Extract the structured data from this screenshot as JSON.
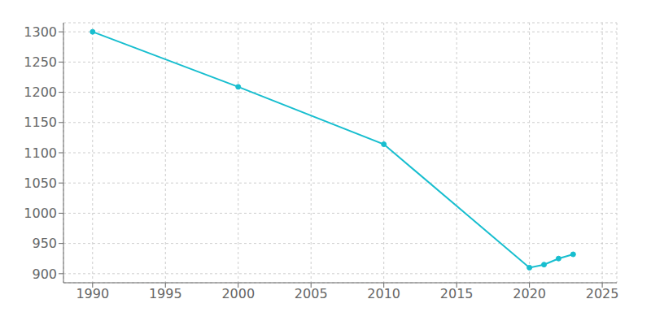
{
  "chart_data": {
    "type": "line",
    "x": [
      1990,
      2000,
      2010,
      2020,
      2021,
      2022,
      2023
    ],
    "values": [
      1300,
      1209,
      1114,
      910,
      915,
      925,
      932
    ],
    "color": "#17becf",
    "marker": "circle",
    "xlim": [
      1988,
      2026
    ],
    "xticks": [
      1990,
      1995,
      2000,
      2005,
      2010,
      2015,
      2020,
      2025
    ],
    "ylim": [
      885,
      1315
    ],
    "yticks": [
      900,
      950,
      1000,
      1050,
      1100,
      1150,
      1200,
      1250,
      1300
    ],
    "grid": true
  }
}
